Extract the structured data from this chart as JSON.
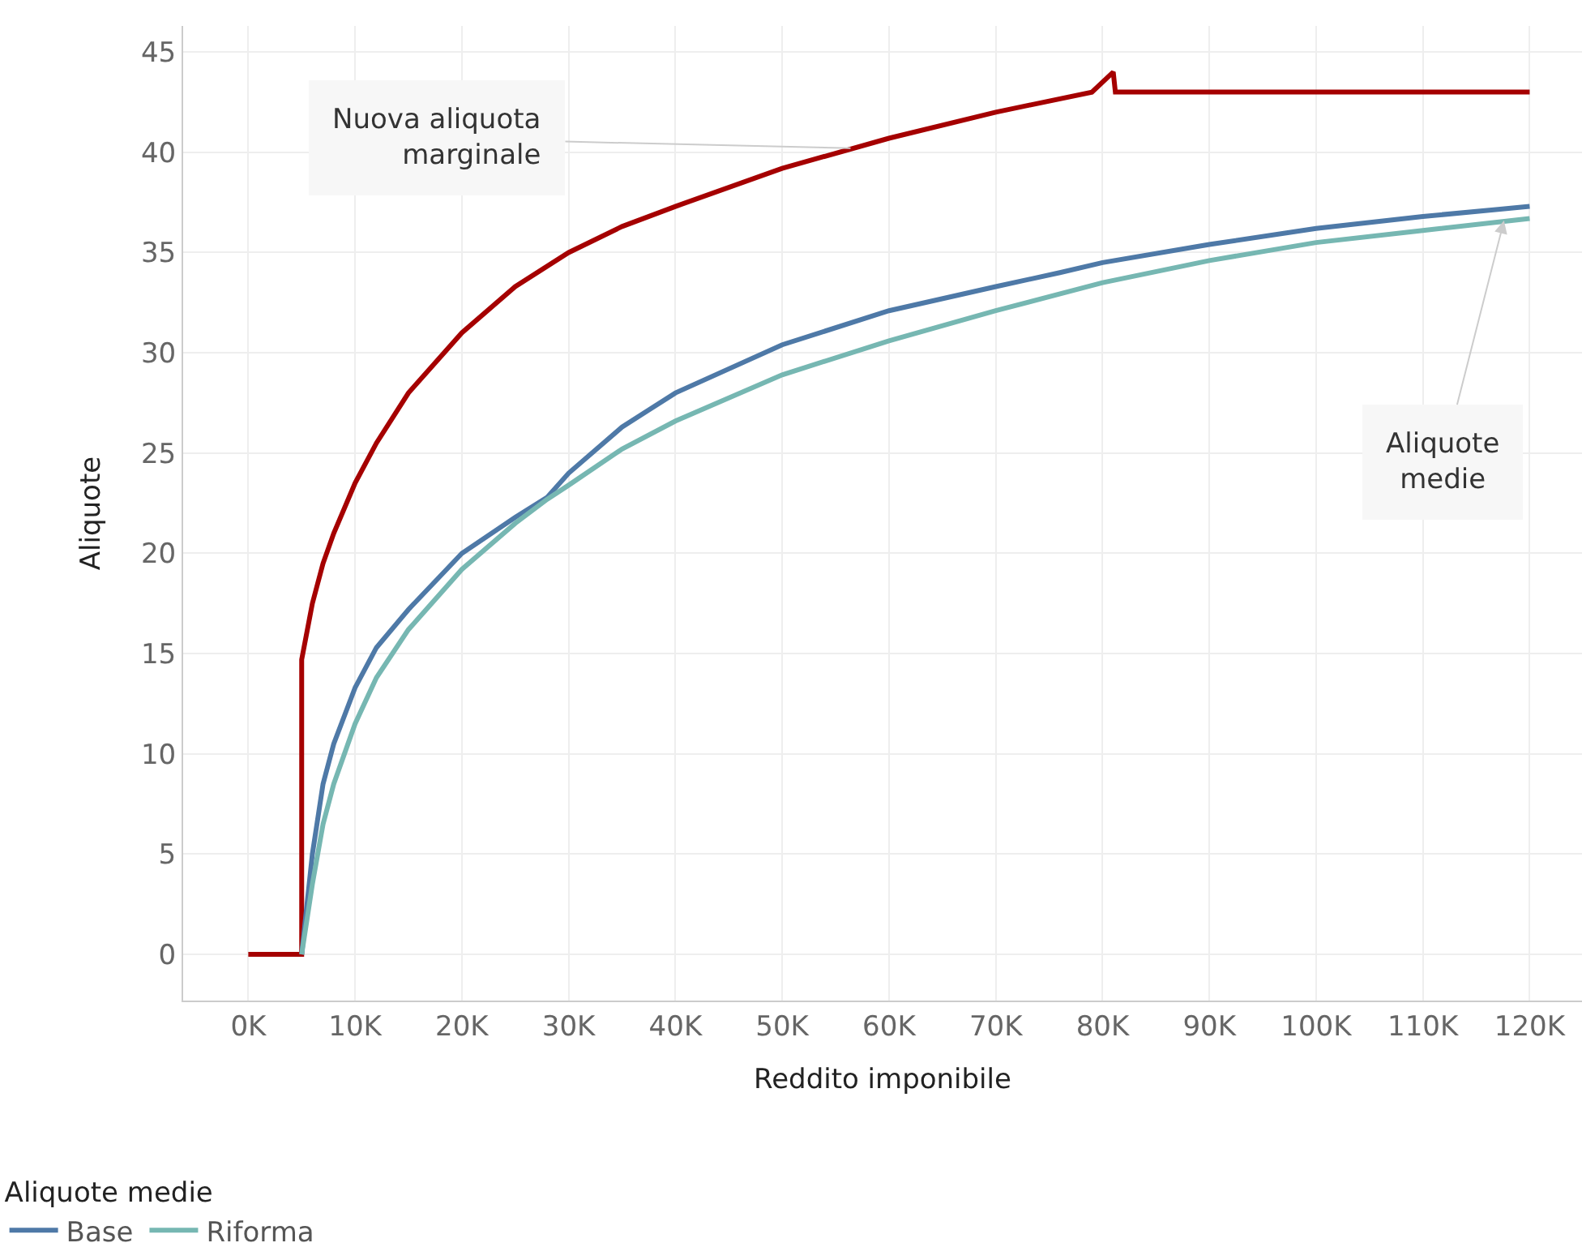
{
  "chart_data": {
    "type": "line",
    "xlabel": "Reddito imponibile",
    "ylabel": "Aliquote",
    "legend_title": "Aliquote medie",
    "series": [
      {
        "color": "#a50000",
        "x": [
          0,
          5000,
          5000,
          6000,
          7000,
          8000,
          10000,
          12000,
          15000,
          20000,
          25000,
          30000,
          35000,
          40000,
          50000,
          60000,
          70000,
          79000,
          81000,
          81200,
          120000
        ],
        "values": [
          0,
          0,
          14.7,
          17.5,
          19.5,
          21,
          23.5,
          25.5,
          28,
          31,
          33.3,
          35,
          36.3,
          37.3,
          39.2,
          40.7,
          42,
          43,
          44,
          43,
          43
        ]
      },
      {
        "name": "Base",
        "color": "#4e79a7",
        "x": [
          5000,
          6000,
          7000,
          8000,
          10000,
          12000,
          15000,
          20000,
          25000,
          28000,
          30000,
          35000,
          40000,
          50000,
          60000,
          70000,
          76000,
          80000,
          90000,
          100000,
          110000,
          120000
        ],
        "values": [
          0,
          5,
          8.5,
          10.5,
          13.3,
          15.3,
          17.2,
          20,
          21.8,
          22.8,
          24,
          26.3,
          28,
          30.4,
          32.1,
          33.3,
          34,
          34.5,
          35.4,
          36.2,
          36.8,
          37.3
        ]
      },
      {
        "name": "Riforma",
        "color": "#76b7b2",
        "x": [
          5000,
          6000,
          7000,
          8000,
          10000,
          12000,
          15000,
          20000,
          25000,
          28000,
          30000,
          35000,
          40000,
          50000,
          60000,
          70000,
          80000,
          90000,
          100000,
          110000,
          120000
        ],
        "values": [
          0,
          3.5,
          6.5,
          8.5,
          11.5,
          13.8,
          16.2,
          19.2,
          21.5,
          22.7,
          23.4,
          25.2,
          26.6,
          28.9,
          30.6,
          32.1,
          33.5,
          34.6,
          35.5,
          36.1,
          36.7
        ]
      }
    ],
    "xlim": [
      -6100,
      124900
    ],
    "xticks": [
      {
        "value": 0,
        "label": "0K"
      },
      {
        "value": 10000,
        "label": "10K"
      },
      {
        "value": 20000,
        "label": "20K"
      },
      {
        "value": 30000,
        "label": "30K"
      },
      {
        "value": 40000,
        "label": "40K"
      },
      {
        "value": 50000,
        "label": "50K"
      },
      {
        "value": 60000,
        "label": "60K"
      },
      {
        "value": 70000,
        "label": "70K"
      },
      {
        "value": 80000,
        "label": "80K"
      },
      {
        "value": 90000,
        "label": "90K"
      },
      {
        "value": 100000,
        "label": "100K"
      },
      {
        "value": 110000,
        "label": "110K"
      },
      {
        "value": 120000,
        "label": "120K"
      }
    ],
    "ylim": [
      -2.3,
      46.3
    ],
    "yticks": [
      0,
      5,
      10,
      15,
      20,
      25,
      30,
      35,
      40,
      45
    ],
    "grid": true,
    "legend": "bottom left",
    "marker": "none",
    "line_style": "solid",
    "annotations": [
      {
        "text": "Nuova aliquota marginale",
        "x": 56400,
        "y": 40.2
      },
      {
        "text": "Aliquote medie",
        "x": 117600,
        "y": 36.6
      }
    ]
  }
}
